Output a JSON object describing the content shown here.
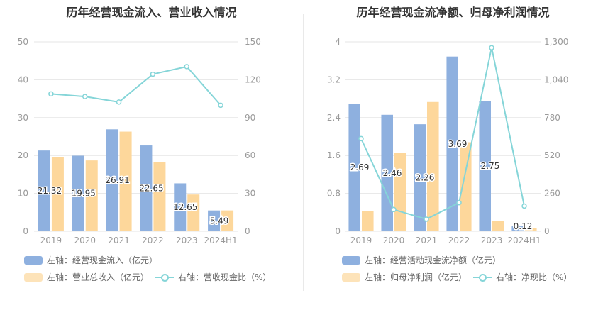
{
  "colors": {
    "bar1": "#8eb0df",
    "bar2": "#fdd79b",
    "line": "#85d5d8",
    "grid": "#e6e6e6",
    "axis": "#9a9a9a",
    "label": "#333333"
  },
  "chart_data": [
    {
      "type": "bar",
      "title": "历年经营现金流入、营业收入情况",
      "categories": [
        "2019",
        "2020",
        "2021",
        "2022",
        "2023",
        "2024H1"
      ],
      "left_axis": {
        "min": 0,
        "max": 50,
        "ticks": [
          "0",
          "10",
          "20",
          "30",
          "40",
          "50"
        ]
      },
      "right_axis": {
        "min": 0,
        "max": 150,
        "ticks": [
          "0",
          "30",
          "60",
          "90",
          "120",
          "150"
        ]
      },
      "series": [
        {
          "name": "左轴：经营现金流入（亿元）",
          "kind": "bar",
          "axis": "left",
          "values": [
            21.32,
            19.95,
            26.91,
            22.65,
            12.65,
            5.49
          ],
          "labels": [
            "21.32",
            "19.95",
            "26.91",
            "22.65",
            "12.65",
            "5.49"
          ]
        },
        {
          "name": "左轴：营业总收入（亿元）",
          "kind": "bar",
          "axis": "left",
          "values": [
            19.6,
            18.7,
            26.3,
            18.2,
            9.7,
            5.5
          ]
        },
        {
          "name": "右轴：营收现金比（%）",
          "kind": "line",
          "axis": "right",
          "values": [
            108.8,
            106.7,
            102.3,
            124.4,
            130.4,
            99.8
          ]
        }
      ],
      "legend": "bottom"
    },
    {
      "type": "bar",
      "title": "历年经营现金流净额、归母净利润情况",
      "categories": [
        "2019",
        "2020",
        "2021",
        "2022",
        "2023",
        "2024H1"
      ],
      "left_axis": {
        "min": 0,
        "max": 4,
        "ticks": [
          "0",
          "0.8",
          "1.6",
          "2.4",
          "3.2",
          "4"
        ]
      },
      "right_axis": {
        "min": 0,
        "max": 1300,
        "ticks": [
          "0",
          "260",
          "520",
          "780",
          "1,040",
          "1,300"
        ]
      },
      "series": [
        {
          "name": "左轴：经营活动现金流净额（亿元）",
          "kind": "bar",
          "axis": "left",
          "values": [
            2.69,
            2.46,
            2.26,
            3.69,
            2.75,
            0.12
          ],
          "labels": [
            "2.69",
            "2.46",
            "2.26",
            "3.69",
            "2.75",
            "0.12"
          ]
        },
        {
          "name": "左轴：归母净利润（亿元）",
          "kind": "bar",
          "axis": "left",
          "values": [
            0.43,
            1.65,
            2.73,
            1.88,
            0.22,
            0.07
          ]
        },
        {
          "name": "右轴：净现比（%）",
          "kind": "line",
          "axis": "right",
          "values": [
            636,
            149,
            83,
            196,
            1260,
            173
          ]
        }
      ],
      "legend": "bottom"
    }
  ]
}
